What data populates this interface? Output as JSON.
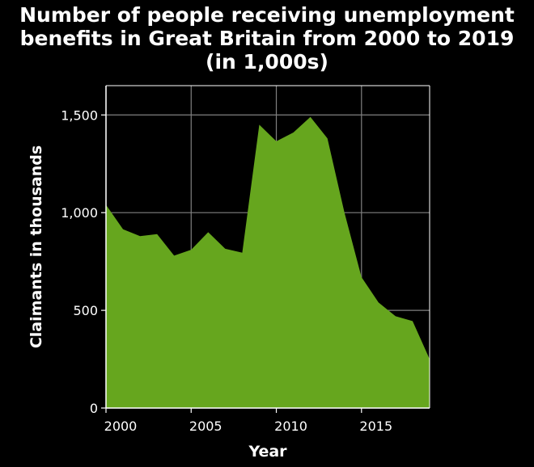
{
  "chart_data": {
    "type": "area",
    "title_lines": [
      "Number of people receiving unemployment",
      "benefits in Great Britain from 2000 to 2019",
      "(in 1,000s)"
    ],
    "xlabel": "Year",
    "ylabel": "Claimants in thousands",
    "x_ticks": [
      {
        "value": 2000,
        "label": "2000"
      },
      {
        "value": 2005,
        "label": "2005"
      },
      {
        "value": 2010,
        "label": "2010"
      },
      {
        "value": 2015,
        "label": "2015"
      }
    ],
    "y_ticks": [
      {
        "value": 0,
        "label": "0"
      },
      {
        "value": 500,
        "label": "500"
      },
      {
        "value": 1000,
        "label": "1,000"
      },
      {
        "value": 1500,
        "label": "1,500"
      }
    ],
    "xlim": [
      2000,
      2019
    ],
    "ylim": [
      0,
      1500
    ],
    "grid": true,
    "series": [
      {
        "x": [
          2000,
          2001,
          2002,
          2003,
          2004,
          2005,
          2006,
          2007,
          2008,
          2009,
          2010,
          2011,
          2012,
          2013,
          2014,
          2015,
          2016,
          2017,
          2018,
          2019
        ],
        "values": [
          1040,
          915,
          880,
          890,
          780,
          810,
          900,
          815,
          795,
          1450,
          1365,
          1410,
          1490,
          1380,
          1000,
          670,
          540,
          470,
          445,
          250
        ],
        "color": "#66a61e"
      }
    ]
  },
  "colors": {
    "background": "#000000",
    "text": "#ffffff",
    "grid": "#808080",
    "area_fill": "#66a61e"
  }
}
